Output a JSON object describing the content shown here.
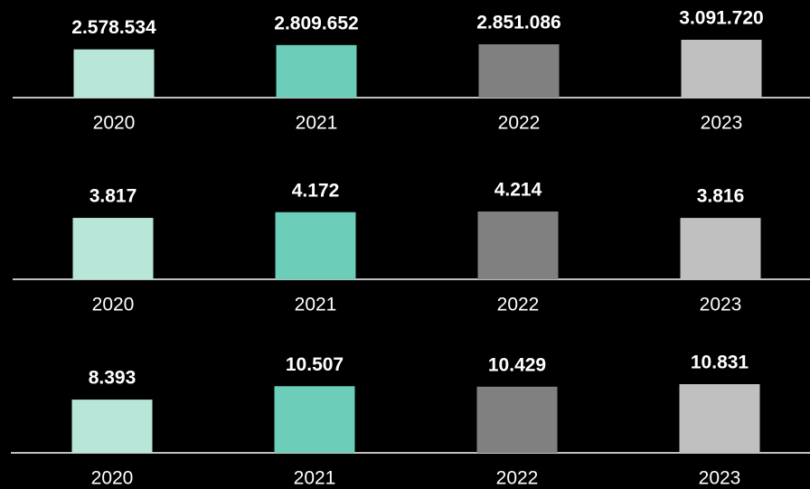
{
  "chart_data": [
    {
      "type": "bar",
      "categories": [
        "2020",
        "2021",
        "2022",
        "2023"
      ],
      "values": [
        2578534,
        2809652,
        2851086,
        3091720
      ],
      "value_labels": [
        "2.578.534",
        "2.809.652",
        "2.851.086",
        "3.091.720"
      ],
      "colors": [
        "#b8e6d9",
        "#6ccdb9",
        "#808080",
        "#c0c0c0"
      ]
    },
    {
      "type": "bar",
      "categories": [
        "2020",
        "2021",
        "2022",
        "2023"
      ],
      "values": [
        3817,
        4172,
        4214,
        3816
      ],
      "value_labels": [
        "3.817",
        "4.172",
        "4.214",
        "3.816"
      ],
      "colors": [
        "#b8e6d9",
        "#6ccdb9",
        "#808080",
        "#c0c0c0"
      ]
    },
    {
      "type": "bar",
      "categories": [
        "2020",
        "2021",
        "2022",
        "2023"
      ],
      "values": [
        8393,
        10507,
        10429,
        10831
      ],
      "value_labels": [
        "8.393",
        "10.507",
        "10.429",
        "10.831"
      ],
      "colors": [
        "#b8e6d9",
        "#6ccdb9",
        "#808080",
        "#c0c0c0"
      ]
    }
  ]
}
